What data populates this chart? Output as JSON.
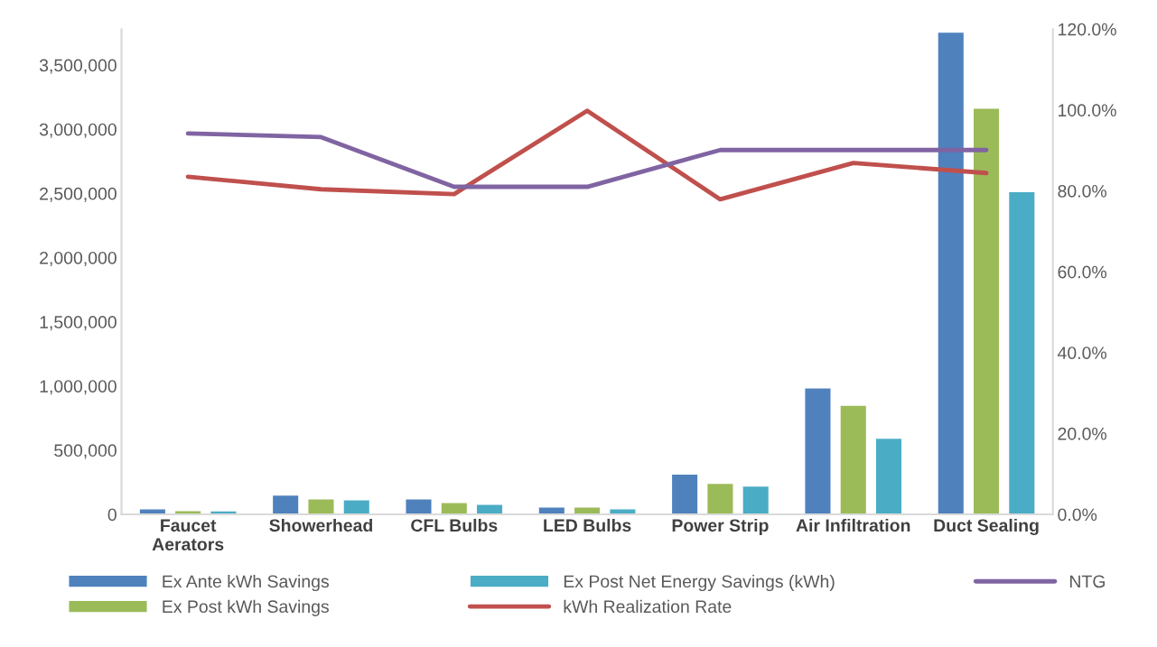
{
  "chart_data": {
    "type": "bar",
    "categories": [
      "Faucet\nAerators",
      "Showerhead",
      "CFL Bulbs",
      "LED Bulbs",
      "Power Strip",
      "Air Infiltration",
      "Duct Sealing"
    ],
    "series": [
      {
        "name": "Ex Ante kWh Savings",
        "color": "#4f81bd",
        "values": [
          43000,
          150000,
          121000,
          57000,
          314000,
          986000,
          3757000
        ]
      },
      {
        "name": "Ex Post kWh Savings",
        "color": "#9bbb59",
        "values": [
          30000,
          121000,
          93000,
          57000,
          243000,
          850000,
          3164000
        ]
      },
      {
        "name": "Ex Post Net Energy Savings (kWh)",
        "color": "#4bacc6",
        "values": [
          28000,
          114000,
          78000,
          43000,
          221000,
          593000,
          2514000
        ]
      },
      {
        "name": "kWh Realization Rate",
        "type": "line",
        "axis": "y2",
        "color": "#c0504d",
        "values": [
          83.5,
          80.4,
          79.2,
          99.8,
          77.9,
          86.9,
          84.4
        ]
      },
      {
        "name": "NTG",
        "type": "line",
        "axis": "y2",
        "color": "#8064a2",
        "values": [
          94.2,
          93.3,
          81.0,
          81.0,
          90.1,
          90.1,
          90.1
        ]
      }
    ],
    "ylim": [
      0,
      3780000
    ],
    "yticks": [
      {
        "value": 0,
        "label": "0"
      },
      {
        "value": 500000,
        "label": "500,000"
      },
      {
        "value": 1000000,
        "label": "1,000,000"
      },
      {
        "value": 1500000,
        "label": "1,500,000"
      },
      {
        "value": 2000000,
        "label": "2,000,000"
      },
      {
        "value": 2500000,
        "label": "2,500,000"
      },
      {
        "value": 3000000,
        "label": "3,000,000"
      },
      {
        "value": 3500000,
        "label": "3,500,000"
      }
    ],
    "y2lim": [
      0,
      120
    ],
    "y2ticks": [
      {
        "value": 0,
        "label": "0.0%"
      },
      {
        "value": 20,
        "label": "20.0%"
      },
      {
        "value": 40,
        "label": "40.0%"
      },
      {
        "value": 60,
        "label": "60.0%"
      },
      {
        "value": 80,
        "label": "80.0%"
      },
      {
        "value": 100,
        "label": "100.0%"
      },
      {
        "value": 120,
        "label": "120.0%"
      }
    ],
    "grid": false,
    "legend": "bottom",
    "marker": "none",
    "line_style": "solid"
  }
}
